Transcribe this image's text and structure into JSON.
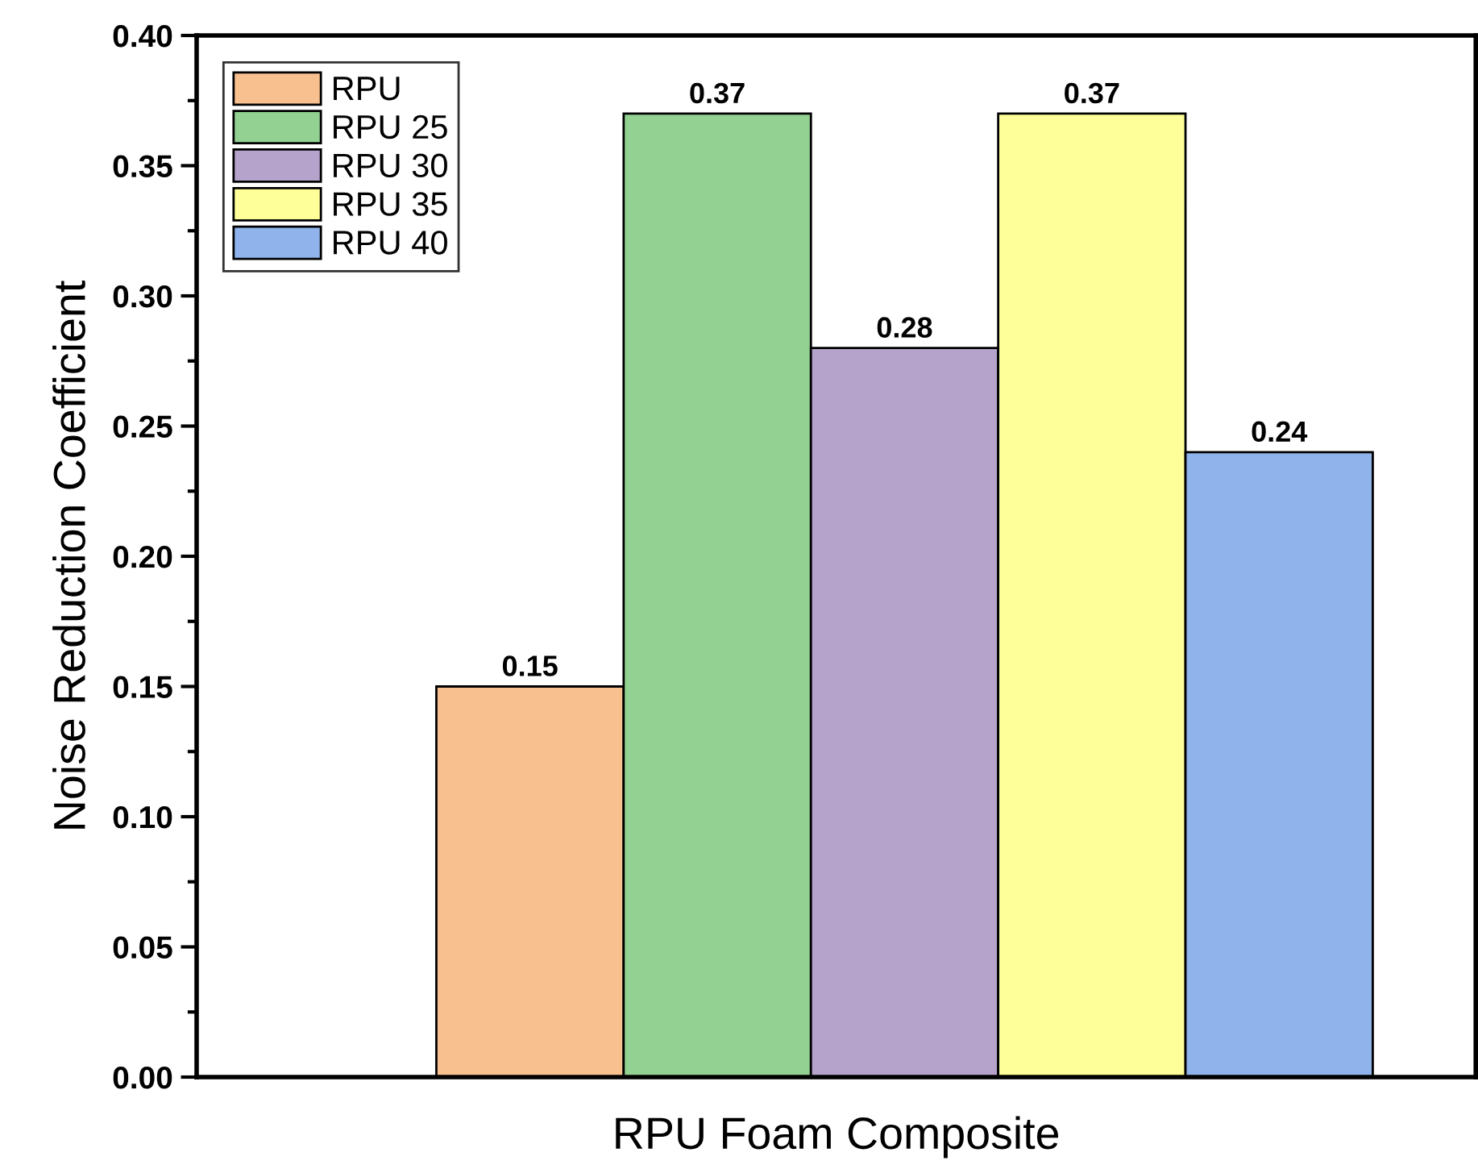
{
  "chart_data": {
    "type": "bar",
    "xlabel": "RPU Foam Composite",
    "ylabel": "Noise Reduction Coefficient",
    "categories": [
      null
    ],
    "series": [
      {
        "name": "RPU",
        "color": "#f9c08f",
        "values": [
          0.15
        ]
      },
      {
        "name": "RPU 25",
        "color": "#93d193",
        "values": [
          0.37
        ]
      },
      {
        "name": "RPU 30",
        "color": "#b5a3cc",
        "values": [
          0.28
        ]
      },
      {
        "name": "RPU 35",
        "color": "#ffff99",
        "values": [
          0.37
        ]
      },
      {
        "name": "RPU 40",
        "color": "#8fb3ea",
        "values": [
          0.24
        ]
      }
    ],
    "ylim": [
      0,
      0.4
    ],
    "yticks": [
      {
        "value": 0,
        "label": "0.00"
      },
      {
        "value": 0.05,
        "label": "0.05"
      },
      {
        "value": 0.1,
        "label": "0.10"
      },
      {
        "value": 0.15,
        "label": "0.15"
      },
      {
        "value": 0.2,
        "label": "0.20"
      },
      {
        "value": 0.25,
        "label": "0.25"
      },
      {
        "value": 0.3,
        "label": "0.30"
      },
      {
        "value": 0.35,
        "label": "0.35"
      },
      {
        "value": 0.4,
        "label": "0.40"
      }
    ],
    "data_labels": true,
    "legend": "top left",
    "grid": false
  }
}
